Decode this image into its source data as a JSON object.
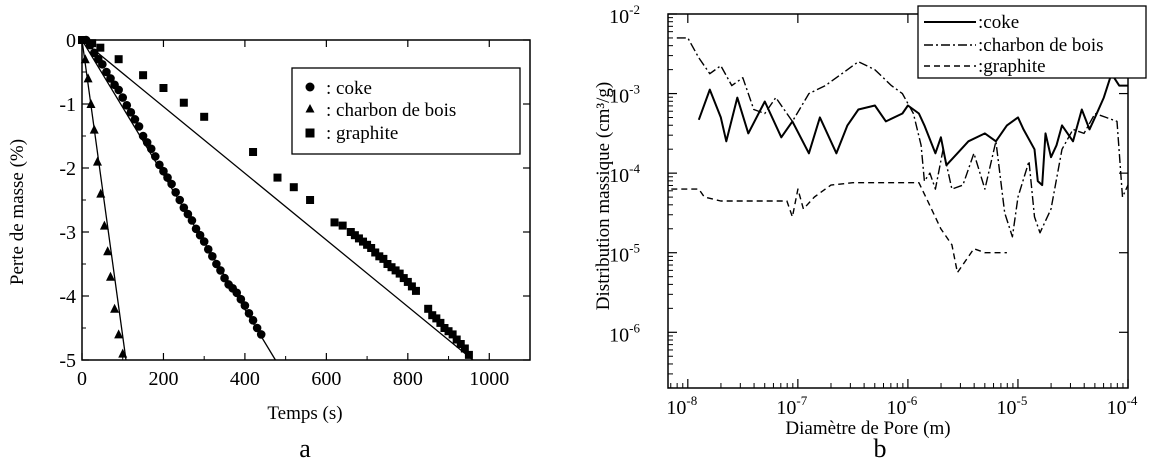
{
  "chart_data": [
    {
      "type": "scatter",
      "panel_label": "a",
      "xlabel": "Temps (s)",
      "ylabel": "Perte de masse (%)",
      "xlim": [
        0,
        1100
      ],
      "ylim": [
        -5,
        0
      ],
      "xticks": [
        0,
        200,
        400,
        600,
        800,
        1000
      ],
      "yticks": [
        0,
        -1,
        -2,
        -3,
        -4,
        -5
      ],
      "legend_position": "top-right",
      "series": [
        {
          "name": ": coke",
          "marker": "circle",
          "points": [
            [
              10,
              0
            ],
            [
              20,
              -0.08
            ],
            [
              30,
              -0.2
            ],
            [
              40,
              -0.3
            ],
            [
              50,
              -0.38
            ],
            [
              60,
              -0.5
            ],
            [
              70,
              -0.6
            ],
            [
              80,
              -0.7
            ],
            [
              90,
              -0.78
            ],
            [
              100,
              -0.9
            ],
            [
              110,
              -1.02
            ],
            [
              120,
              -1.13
            ],
            [
              130,
              -1.24
            ],
            [
              140,
              -1.35
            ],
            [
              150,
              -1.5
            ],
            [
              160,
              -1.6
            ],
            [
              170,
              -1.7
            ],
            [
              180,
              -1.82
            ],
            [
              190,
              -1.95
            ],
            [
              200,
              -2.05
            ],
            [
              210,
              -2.15
            ],
            [
              220,
              -2.25
            ],
            [
              230,
              -2.38
            ],
            [
              240,
              -2.5
            ],
            [
              250,
              -2.62
            ],
            [
              260,
              -2.72
            ],
            [
              270,
              -2.82
            ],
            [
              280,
              -2.95
            ],
            [
              290,
              -3.05
            ],
            [
              300,
              -3.15
            ],
            [
              310,
              -3.27
            ],
            [
              320,
              -3.38
            ],
            [
              330,
              -3.5
            ],
            [
              340,
              -3.6
            ],
            [
              350,
              -3.72
            ],
            [
              360,
              -3.82
            ],
            [
              370,
              -3.88
            ],
            [
              380,
              -3.95
            ],
            [
              390,
              -4.05
            ],
            [
              400,
              -4.15
            ],
            [
              410,
              -4.27
            ],
            [
              420,
              -4.38
            ],
            [
              430,
              -4.5
            ],
            [
              440,
              -4.6
            ]
          ],
          "fit": [
            [
              0,
              0
            ],
            [
              475,
              -5
            ]
          ]
        },
        {
          "name": ": charbon de bois",
          "marker": "triangle",
          "points": [
            [
              8,
              -0.3
            ],
            [
              15,
              -0.6
            ],
            [
              22,
              -1.0
            ],
            [
              30,
              -1.4
            ],
            [
              38,
              -1.9
            ],
            [
              46,
              -2.4
            ],
            [
              55,
              -2.9
            ],
            [
              63,
              -3.3
            ],
            [
              70,
              -3.7
            ],
            [
              80,
              -4.2
            ],
            [
              90,
              -4.6
            ],
            [
              100,
              -4.9
            ]
          ],
          "fit": [
            [
              0,
              0
            ],
            [
              108,
              -5
            ]
          ]
        },
        {
          "name": ": graphite",
          "marker": "square",
          "points": [
            [
              0,
              0
            ],
            [
              25,
              -0.05
            ],
            [
              45,
              -0.12
            ],
            [
              90,
              -0.3
            ],
            [
              150,
              -0.55
            ],
            [
              200,
              -0.75
            ],
            [
              250,
              -0.98
            ],
            [
              300,
              -1.2
            ],
            [
              420,
              -1.75
            ],
            [
              480,
              -2.15
            ],
            [
              520,
              -2.3
            ],
            [
              560,
              -2.5
            ],
            [
              620,
              -2.85
            ],
            [
              640,
              -2.9
            ],
            [
              660,
              -3.0
            ],
            [
              670,
              -3.05
            ],
            [
              680,
              -3.1
            ],
            [
              690,
              -3.15
            ],
            [
              700,
              -3.2
            ],
            [
              710,
              -3.25
            ],
            [
              720,
              -3.32
            ],
            [
              730,
              -3.38
            ],
            [
              740,
              -3.42
            ],
            [
              750,
              -3.5
            ],
            [
              760,
              -3.55
            ],
            [
              770,
              -3.6
            ],
            [
              780,
              -3.65
            ],
            [
              790,
              -3.72
            ],
            [
              800,
              -3.78
            ],
            [
              810,
              -3.85
            ],
            [
              820,
              -3.92
            ],
            [
              850,
              -4.2
            ],
            [
              860,
              -4.3
            ],
            [
              870,
              -4.35
            ],
            [
              880,
              -4.42
            ],
            [
              890,
              -4.5
            ],
            [
              900,
              -4.55
            ],
            [
              910,
              -4.6
            ],
            [
              920,
              -4.68
            ],
            [
              930,
              -4.75
            ],
            [
              940,
              -4.82
            ],
            [
              950,
              -4.92
            ]
          ],
          "fit": [
            [
              0,
              0
            ],
            [
              960,
              -5
            ]
          ]
        }
      ]
    },
    {
      "type": "line",
      "panel_label": "b",
      "xlabel": "Diamètre de Pore (m)",
      "ylabel": "Distribution massique (cm³/g)",
      "x_scale": "log",
      "y_scale": "log",
      "xlim_exp": [
        -8.18,
        -4
      ],
      "ylim_exp": [
        -6.7,
        -2
      ],
      "xticks": [
        {
          "exp": -8,
          "label": "10",
          "sup": "-8"
        },
        {
          "exp": -7,
          "label": "10",
          "sup": "-7"
        },
        {
          "exp": -6,
          "label": "10",
          "sup": "-6"
        },
        {
          "exp": -5,
          "label": "10",
          "sup": "-5"
        },
        {
          "exp": -4,
          "label": "10",
          "sup": "-4"
        }
      ],
      "yticks": [
        {
          "exp": -2,
          "label": "10",
          "sup": "-2"
        },
        {
          "exp": -3,
          "label": "10",
          "sup": "-3"
        },
        {
          "exp": -4,
          "label": "10",
          "sup": "-4"
        },
        {
          "exp": -5,
          "label": "10",
          "sup": "-5"
        },
        {
          "exp": -6,
          "label": "10",
          "sup": "-6"
        }
      ],
      "legend_position": "top-right",
      "series": [
        {
          "name": ":coke",
          "dash": "solid",
          "points_log": [
            [
              -7.9,
              -3.33
            ],
            [
              -7.8,
              -2.95
            ],
            [
              -7.7,
              -3.3
            ],
            [
              -7.65,
              -3.6
            ],
            [
              -7.55,
              -3.05
            ],
            [
              -7.45,
              -3.5
            ],
            [
              -7.3,
              -3.1
            ],
            [
              -7.15,
              -3.55
            ],
            [
              -7.05,
              -3.35
            ],
            [
              -6.9,
              -3.75
            ],
            [
              -6.8,
              -3.3
            ],
            [
              -6.65,
              -3.75
            ],
            [
              -6.55,
              -3.4
            ],
            [
              -6.45,
              -3.2
            ],
            [
              -6.3,
              -3.15
            ],
            [
              -6.2,
              -3.35
            ],
            [
              -6.05,
              -3.25
            ],
            [
              -6.0,
              -3.15
            ],
            [
              -5.9,
              -3.25
            ],
            [
              -5.85,
              -3.4
            ],
            [
              -5.75,
              -3.75
            ],
            [
              -5.7,
              -3.55
            ],
            [
              -5.65,
              -3.9
            ],
            [
              -5.55,
              -3.75
            ],
            [
              -5.45,
              -3.6
            ],
            [
              -5.3,
              -3.5
            ],
            [
              -5.2,
              -3.6
            ],
            [
              -5.1,
              -3.4
            ],
            [
              -5.0,
              -3.3
            ],
            [
              -4.95,
              -3.45
            ],
            [
              -4.85,
              -3.7
            ],
            [
              -4.82,
              -4.1
            ],
            [
              -4.78,
              -4.15
            ],
            [
              -4.75,
              -3.5
            ],
            [
              -4.7,
              -3.8
            ],
            [
              -4.65,
              -3.65
            ],
            [
              -4.6,
              -3.4
            ],
            [
              -4.5,
              -3.6
            ],
            [
              -4.42,
              -3.2
            ],
            [
              -4.35,
              -3.45
            ],
            [
              -4.3,
              -3.3
            ],
            [
              -4.22,
              -3.05
            ],
            [
              -4.15,
              -2.75
            ],
            [
              -4.08,
              -2.9
            ],
            [
              -4.0,
              -2.9
            ]
          ]
        },
        {
          "name": ":charbon de bois",
          "dash": "dashdot",
          "points_log": [
            [
              -8.1,
              -2.3
            ],
            [
              -8.0,
              -2.3
            ],
            [
              -7.9,
              -2.55
            ],
            [
              -7.8,
              -2.75
            ],
            [
              -7.7,
              -2.65
            ],
            [
              -7.6,
              -2.9
            ],
            [
              -7.5,
              -2.8
            ],
            [
              -7.4,
              -3.2
            ],
            [
              -7.3,
              -3.25
            ],
            [
              -7.2,
              -3.05
            ],
            [
              -7.05,
              -3.35
            ],
            [
              -6.9,
              -3.0
            ],
            [
              -6.75,
              -2.9
            ],
            [
              -6.6,
              -2.75
            ],
            [
              -6.45,
              -2.6
            ],
            [
              -6.3,
              -2.7
            ],
            [
              -6.15,
              -2.9
            ],
            [
              -6.05,
              -3.0
            ],
            [
              -5.95,
              -3.25
            ],
            [
              -5.88,
              -3.65
            ],
            [
              -5.85,
              -4.1
            ],
            [
              -5.8,
              -4.0
            ],
            [
              -5.75,
              -4.2
            ],
            [
              -5.68,
              -3.7
            ],
            [
              -5.6,
              -4.2
            ],
            [
              -5.5,
              -4.15
            ],
            [
              -5.4,
              -3.75
            ],
            [
              -5.3,
              -4.2
            ],
            [
              -5.2,
              -3.6
            ],
            [
              -5.12,
              -4.5
            ],
            [
              -5.05,
              -4.8
            ],
            [
              -5.0,
              -4.3
            ],
            [
              -4.9,
              -3.85
            ],
            [
              -4.85,
              -4.55
            ],
            [
              -4.8,
              -4.75
            ],
            [
              -4.75,
              -4.6
            ],
            [
              -4.7,
              -4.45
            ],
            [
              -4.6,
              -3.7
            ],
            [
              -4.5,
              -3.45
            ],
            [
              -4.4,
              -3.5
            ],
            [
              -4.3,
              -3.25
            ],
            [
              -4.2,
              -3.3
            ],
            [
              -4.1,
              -3.35
            ],
            [
              -4.05,
              -4.3
            ],
            [
              -4.0,
              -4.15
            ]
          ]
        },
        {
          "name": ":graphite",
          "dash": "dashed",
          "points_log": [
            [
              -8.15,
              -4.2
            ],
            [
              -7.9,
              -4.2
            ],
            [
              -7.85,
              -4.3
            ],
            [
              -7.7,
              -4.35
            ],
            [
              -7.5,
              -4.35
            ],
            [
              -7.3,
              -4.35
            ],
            [
              -7.1,
              -4.35
            ],
            [
              -7.05,
              -4.55
            ],
            [
              -7.0,
              -4.2
            ],
            [
              -6.95,
              -4.45
            ],
            [
              -6.85,
              -4.3
            ],
            [
              -6.7,
              -4.15
            ],
            [
              -6.5,
              -4.12
            ],
            [
              -6.2,
              -4.12
            ],
            [
              -5.9,
              -4.12
            ],
            [
              -5.82,
              -4.35
            ],
            [
              -5.7,
              -4.7
            ],
            [
              -5.6,
              -4.9
            ],
            [
              -5.55,
              -5.25
            ],
            [
              -5.4,
              -4.95
            ],
            [
              -5.3,
              -5.0
            ],
            [
              -5.1,
              -5.0
            ]
          ]
        }
      ]
    }
  ]
}
